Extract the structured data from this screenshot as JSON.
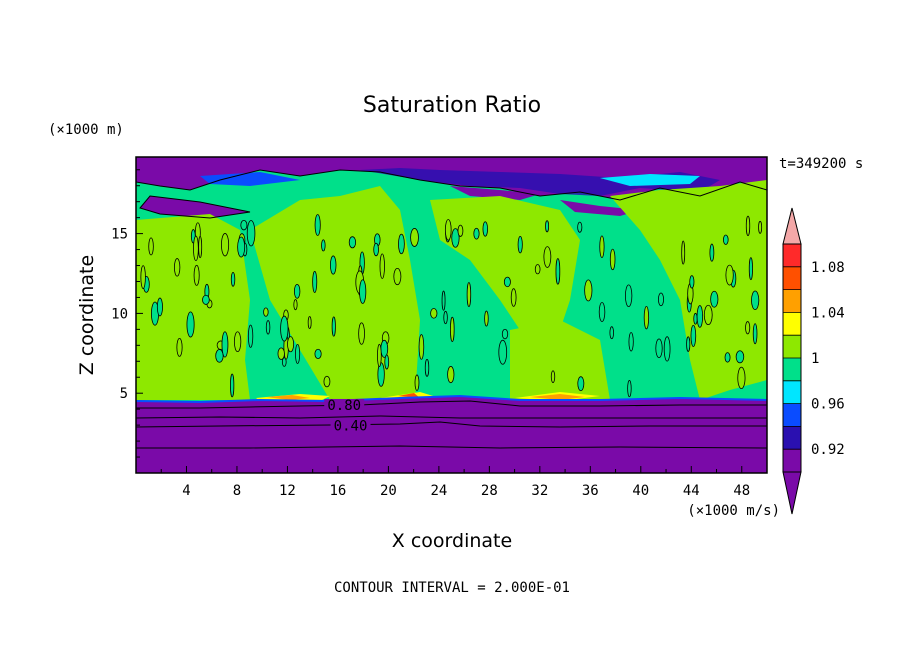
{
  "chart_data": {
    "type": "heatmap",
    "title": "Saturation Ratio",
    "xlabel": "X coordinate",
    "ylabel": "Z coordinate",
    "x_unit": "(×1000 m/s)",
    "y_unit": "(×1000 m)",
    "time_label": "t=349200 s",
    "footer": "CONTOUR INTERVAL = 2.000E-01",
    "xlim": [
      0,
      50
    ],
    "ylim": [
      0,
      19.8
    ],
    "x_ticks": [
      4,
      8,
      12,
      16,
      20,
      24,
      28,
      32,
      36,
      40,
      44,
      48
    ],
    "y_ticks": [
      5,
      10,
      15
    ],
    "contour_labels": [
      {
        "text": "0.80",
        "x": 16.5,
        "y": 4.2
      },
      {
        "text": "0.40",
        "x": 17.0,
        "y": 2.9
      }
    ],
    "colorbar": {
      "levels": [
        0.9,
        0.92,
        0.94,
        0.96,
        0.98,
        1.0,
        1.02,
        1.04,
        1.06,
        1.08,
        1.1
      ],
      "tick_labels": [
        {
          "value": 0.92,
          "text": "0.92"
        },
        {
          "value": 0.96,
          "text": "0.96"
        },
        {
          "value": 1.0,
          "text": "1"
        },
        {
          "value": 1.04,
          "text": "1.04"
        },
        {
          "value": 1.08,
          "text": "1.08"
        }
      ],
      "colors": [
        "#7a0aa8",
        "#2a10b0",
        "#0a4cff",
        "#00e6ff",
        "#00e08a",
        "#8ee800",
        "#ffff00",
        "#ffa000",
        "#ff5000",
        "#ff2a2a"
      ],
      "under_color": "#7a0aa8",
      "over_color": "#f4a8a8"
    },
    "regions": [
      {
        "name": "subsaturated-lower-layer",
        "value": 0.5,
        "z_range": [
          0,
          4.6
        ],
        "color": "#7a0aa8"
      },
      {
        "name": "near-saturated-columns",
        "value": 1.0,
        "z_range": [
          4.6,
          16
        ],
        "color": "#8ee800"
      },
      {
        "name": "slightly-subsaturated-background",
        "value": 0.99,
        "z_range": [
          4.6,
          18.5
        ],
        "color": "#00e08a"
      },
      {
        "name": "dry-upper-layer",
        "value": 0.85,
        "z_range": [
          18,
          19.8
        ],
        "color": "#7a0aa8"
      }
    ]
  }
}
